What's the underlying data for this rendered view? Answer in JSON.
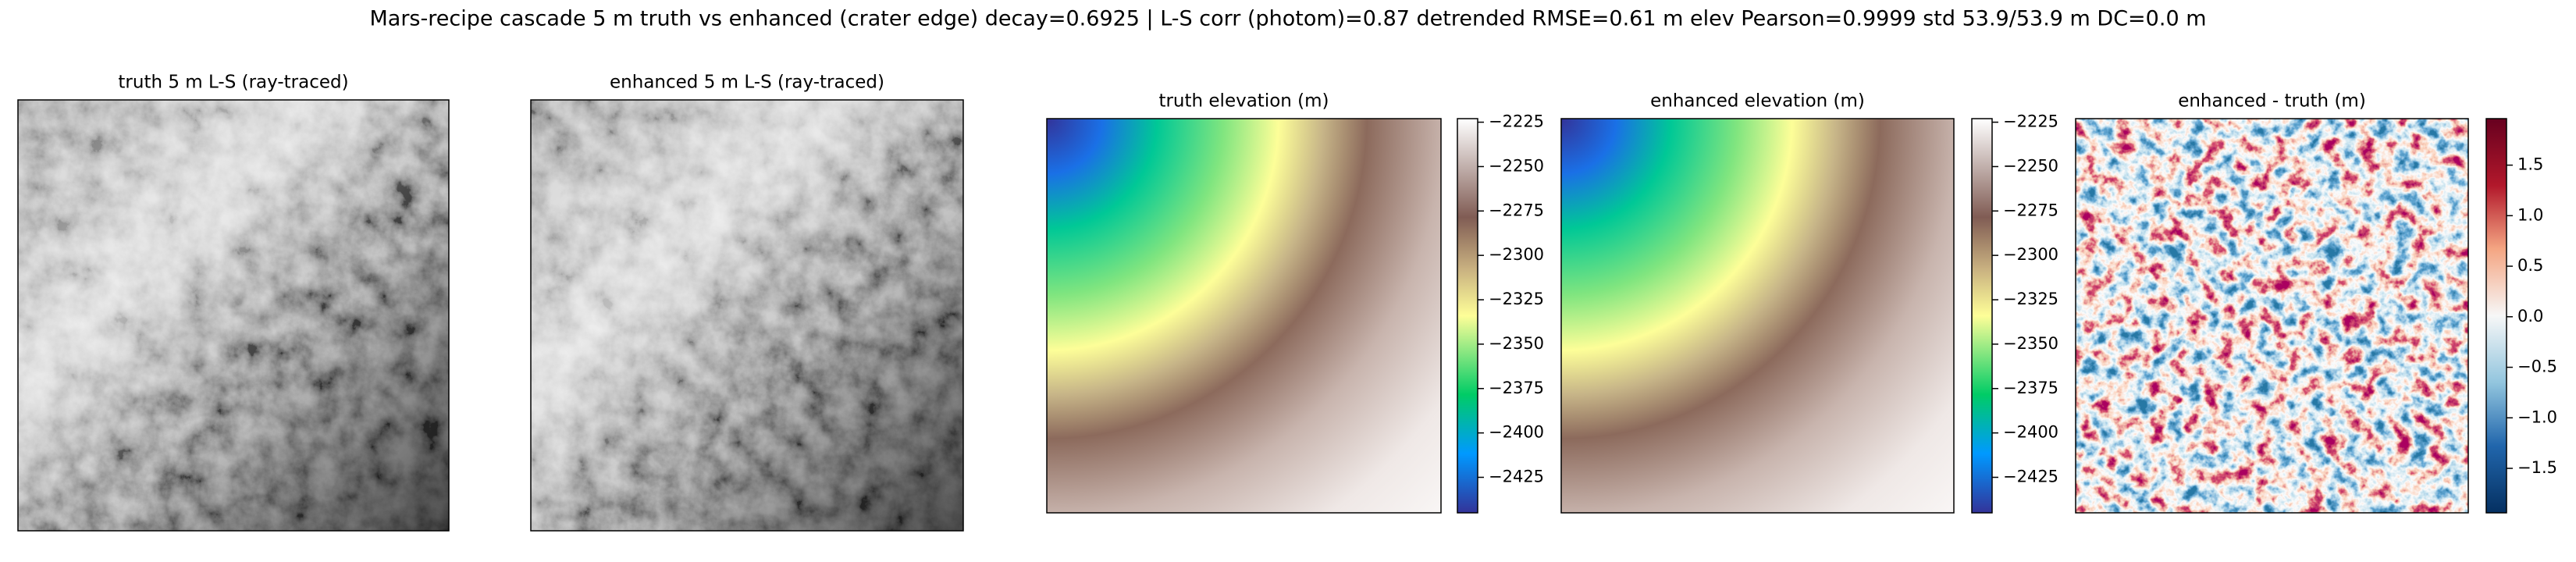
{
  "title": "Mars-recipe cascade 5 m truth vs enhanced (crater edge) decay=0.6925  |  L-S corr (photom)=0.87  detrended RMSE=0.61 m  elev Pearson=0.9999  std 53.9/53.9 m  DC=0.0 m",
  "chart_data": [
    {
      "type": "image",
      "title": "truth 5 m L-S (ray-traced)",
      "cmap": "gray"
    },
    {
      "type": "image",
      "title": "enhanced 5 m L-S (ray-traced)",
      "cmap": "gray"
    },
    {
      "type": "heatmap",
      "title": "truth elevation (m)",
      "cmap": "terrain",
      "clim": [
        -2445,
        -2223
      ],
      "ticks": [
        {
          "value": -2225,
          "label": "−2225"
        },
        {
          "value": -2250,
          "label": "−2250"
        },
        {
          "value": -2275,
          "label": "−2275"
        },
        {
          "value": -2300,
          "label": "−2300"
        },
        {
          "value": -2325,
          "label": "−2325"
        },
        {
          "value": -2350,
          "label": "−2350"
        },
        {
          "value": -2375,
          "label": "−2375"
        },
        {
          "value": -2400,
          "label": "−2400"
        },
        {
          "value": -2425,
          "label": "−2425"
        }
      ]
    },
    {
      "type": "heatmap",
      "title": "enhanced elevation (m)",
      "cmap": "terrain",
      "clim": [
        -2445,
        -2223
      ],
      "ticks": [
        {
          "value": -2225,
          "label": "−2225"
        },
        {
          "value": -2250,
          "label": "−2250"
        },
        {
          "value": -2275,
          "label": "−2275"
        },
        {
          "value": -2300,
          "label": "−2300"
        },
        {
          "value": -2325,
          "label": "−2325"
        },
        {
          "value": -2350,
          "label": "−2350"
        },
        {
          "value": -2375,
          "label": "−2375"
        },
        {
          "value": -2400,
          "label": "−2400"
        },
        {
          "value": -2425,
          "label": "−2425"
        }
      ]
    },
    {
      "type": "heatmap",
      "title": "enhanced - truth (m)",
      "cmap": "RdBu_r",
      "clim": [
        -1.94,
        1.96
      ],
      "ticks": [
        {
          "value": -1.5,
          "label": "−1.5"
        },
        {
          "value": -1.0,
          "label": "−1.0"
        },
        {
          "value": -0.5,
          "label": "−0.5"
        },
        {
          "value": 0.0,
          "label": "0.0"
        },
        0.5,
        {
          "value": 1.0,
          "label": "1.0"
        },
        1.5
      ]
    }
  ]
}
